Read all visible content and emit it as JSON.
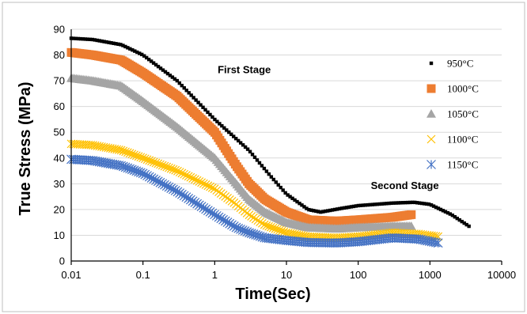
{
  "chart_data": {
    "type": "scatter",
    "title": "",
    "xlabel": "Time(Sec)",
    "ylabel": "True Stress (MPa)",
    "x_scale": "log",
    "xlim": [
      0.01,
      10000
    ],
    "ylim": [
      0,
      90
    ],
    "x_ticks": [
      0.01,
      0.1,
      1,
      10,
      100,
      1000,
      10000
    ],
    "x_tick_labels": [
      "0.01",
      "0.1",
      "1",
      "10",
      "100",
      "1000",
      "10000"
    ],
    "y_ticks": [
      0,
      10,
      20,
      30,
      40,
      50,
      60,
      70,
      80,
      90
    ],
    "y_tick_labels": [
      "0",
      "10",
      "20",
      "30",
      "40",
      "50",
      "60",
      "70",
      "80",
      "90"
    ],
    "grid": "horizontal",
    "legend_position": "right",
    "annotations": [
      {
        "text": "First Stage",
        "x": 1.1,
        "y": 73
      },
      {
        "text": "Second Stage",
        "x": 150,
        "y": 28
      }
    ],
    "series": [
      {
        "name": "950°C",
        "marker": "square-small",
        "color": "#000000",
        "points": [
          [
            0.01,
            86.5
          ],
          [
            0.02,
            86
          ],
          [
            0.05,
            84
          ],
          [
            0.1,
            80
          ],
          [
            0.3,
            70
          ],
          [
            1,
            55
          ],
          [
            3,
            43
          ],
          [
            6,
            33
          ],
          [
            10,
            26
          ],
          [
            20,
            20
          ],
          [
            30,
            19
          ],
          [
            60,
            20.5
          ],
          [
            100,
            21.5
          ],
          [
            300,
            22.5
          ],
          [
            600,
            22.8
          ],
          [
            1000,
            22
          ],
          [
            2000,
            18
          ],
          [
            3500,
            13.5
          ]
        ]
      },
      {
        "name": "1000°C",
        "marker": "square",
        "color": "#ed7d31",
        "points": [
          [
            0.01,
            81
          ],
          [
            0.02,
            80
          ],
          [
            0.05,
            78
          ],
          [
            0.1,
            73
          ],
          [
            0.3,
            64
          ],
          [
            1,
            50
          ],
          [
            2,
            37
          ],
          [
            3,
            30
          ],
          [
            5,
            24
          ],
          [
            10,
            19
          ],
          [
            20,
            16
          ],
          [
            50,
            15.5
          ],
          [
            100,
            16
          ],
          [
            300,
            17
          ],
          [
            550,
            18
          ]
        ]
      },
      {
        "name": "1050°C",
        "marker": "triangle",
        "color": "#a5a5a5",
        "points": [
          [
            0.01,
            71
          ],
          [
            0.02,
            70
          ],
          [
            0.05,
            68
          ],
          [
            0.1,
            62
          ],
          [
            0.3,
            52
          ],
          [
            1,
            40
          ],
          [
            2,
            30
          ],
          [
            3,
            24
          ],
          [
            5,
            19
          ],
          [
            10,
            15
          ],
          [
            20,
            13
          ],
          [
            50,
            12.5
          ],
          [
            100,
            13
          ],
          [
            300,
            13.5
          ],
          [
            550,
            13.5
          ]
        ]
      },
      {
        "name": "1100°C",
        "marker": "x",
        "color": "#ffc000",
        "points": [
          [
            0.01,
            45.5
          ],
          [
            0.02,
            45
          ],
          [
            0.05,
            43
          ],
          [
            0.1,
            40
          ],
          [
            0.3,
            35
          ],
          [
            1,
            28
          ],
          [
            2,
            22
          ],
          [
            3,
            18
          ],
          [
            5,
            14
          ],
          [
            10,
            11
          ],
          [
            20,
            9.5
          ],
          [
            50,
            9
          ],
          [
            100,
            9.5
          ],
          [
            300,
            11
          ],
          [
            700,
            10.5
          ],
          [
            1300,
            9.5
          ]
        ]
      },
      {
        "name": "1150°C",
        "marker": "star",
        "color": "#4472c4",
        "points": [
          [
            0.01,
            39.5
          ],
          [
            0.02,
            39
          ],
          [
            0.05,
            37
          ],
          [
            0.1,
            34
          ],
          [
            0.3,
            27
          ],
          [
            1,
            18
          ],
          [
            2,
            13
          ],
          [
            3,
            11
          ],
          [
            5,
            9
          ],
          [
            10,
            8
          ],
          [
            20,
            7.2
          ],
          [
            50,
            7
          ],
          [
            100,
            7.5
          ],
          [
            300,
            9
          ],
          [
            700,
            8.5
          ],
          [
            1300,
            7
          ]
        ]
      }
    ]
  }
}
